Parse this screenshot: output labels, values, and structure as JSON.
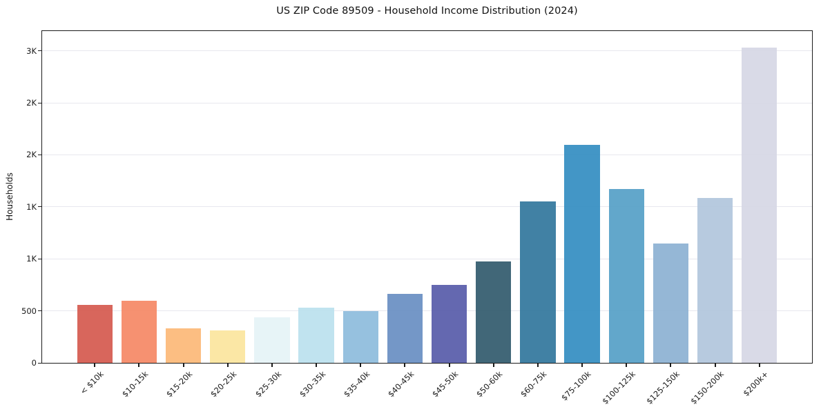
{
  "chart_data": {
    "type": "bar",
    "title": "US ZIP Code 89509 - Household Income Distribution (2024)",
    "xlabel": "",
    "ylabel": "Households",
    "categories": [
      "< $10k",
      "$10-15k",
      "$15-20k",
      "$20-25k",
      "$25-30k",
      "$30-35k",
      "$35-40k",
      "$40-45k",
      "$45-50k",
      "$50-60k",
      "$60-75k",
      "$75-100k",
      "$100-125k",
      "$125-150k",
      "$150-200k",
      "$200k+"
    ],
    "values": [
      560,
      600,
      335,
      310,
      440,
      530,
      500,
      660,
      750,
      975,
      1550,
      2095,
      1670,
      1150,
      1585,
      3030
    ],
    "bar_colors": [
      "#d65c52",
      "#f58a68",
      "#fcba7a",
      "#fbe59f",
      "#e6f3f7",
      "#bce1ee",
      "#8fbddd",
      "#6b90c3",
      "#5a5fab",
      "#355e70",
      "#35799e",
      "#378fc2",
      "#58a2c8",
      "#8eb3d3",
      "#b3c7dd",
      "#d7d8e5"
    ],
    "ylim": [
      0,
      3190
    ],
    "yticks": {
      "values": [
        0,
        500,
        1000,
        1500,
        2000,
        2500,
        3000
      ],
      "labels": [
        "0",
        "500",
        "1K",
        "1K",
        "2K",
        "2K",
        "3K"
      ]
    },
    "x_tick_rotation_deg": 45,
    "bar_width_fraction": 0.8,
    "xlim": [
      -1.19,
      16.19
    ],
    "grid": "horizontal",
    "legend": "none",
    "colors": {
      "background": "#ffffff",
      "grid": "#e7e7ee",
      "axis": "#1a1a1a",
      "text": "#111111"
    }
  }
}
